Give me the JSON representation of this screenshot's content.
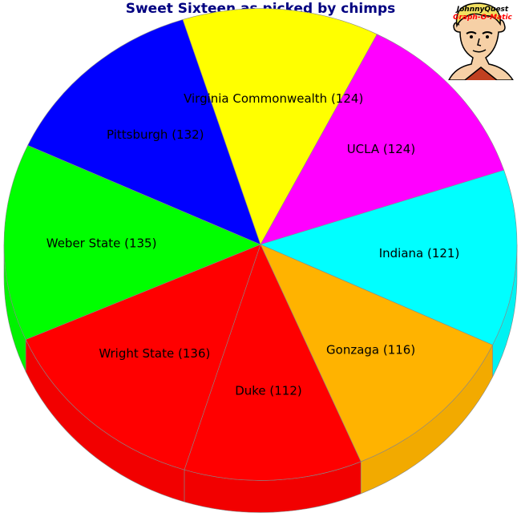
{
  "chart_data": {
    "type": "pie",
    "title": "Sweet Sixteen as picked by chimps",
    "categories": [
      "UCLA",
      "Indiana",
      "Gonzaga",
      "Duke",
      "Wright State",
      "Weber State",
      "Pittsburgh",
      "Virginia Commonwealth"
    ],
    "values": [
      124,
      121,
      116,
      112,
      136,
      135,
      132,
      124
    ],
    "labels": [
      "UCLA (124)",
      "Indiana (121)",
      "Gonzaga (116)",
      "Duke (112)",
      "Wright State (136)",
      "Weber State (135)",
      "Pittsburgh (132)",
      "Virginia Commonwealth (124)"
    ],
    "colors": [
      "#FF00FF",
      "#00FFFF",
      "#FFB300",
      "#FF0000",
      "#FF0000",
      "#00FF00",
      "#0000FF",
      "#FFFF00"
    ],
    "legend": "none",
    "style": "3d"
  },
  "logo": {
    "line1": "JohnnyQuest",
    "line2": "Graph-O-Matic"
  }
}
